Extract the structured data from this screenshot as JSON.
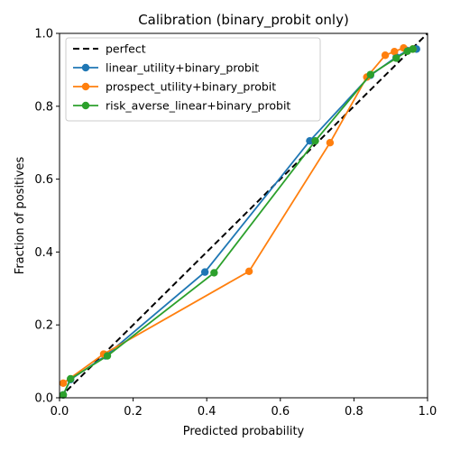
{
  "chart_data": {
    "type": "line",
    "title": "Calibration (binary_probit only)",
    "xlabel": "Predicted probability",
    "ylabel": "Fraction of positives",
    "xlim": [
      0,
      1
    ],
    "ylim": [
      0,
      1
    ],
    "xticks": [
      "0.0",
      "0.2",
      "0.4",
      "0.6",
      "0.8",
      "1.0"
    ],
    "yticks": [
      "0.0",
      "0.2",
      "0.4",
      "0.6",
      "0.8",
      "1.0"
    ],
    "grid": false,
    "legend_position": "top-left",
    "reference": {
      "name": "perfect",
      "color": "#000000",
      "style": "dashed",
      "x": [
        0,
        1
      ],
      "y": [
        0,
        1
      ]
    },
    "series": [
      {
        "name": "linear_utility+binary_probit",
        "color": "#1f77b4",
        "x": [
          0.01,
          0.03,
          0.125,
          0.395,
          0.68,
          0.845,
          0.915,
          0.945,
          0.97
        ],
        "y": [
          0.008,
          0.05,
          0.115,
          0.345,
          0.705,
          0.885,
          0.935,
          0.953,
          0.957
        ]
      },
      {
        "name": "prospect_utility+binary_probit",
        "color": "#ff7f0e",
        "x": [
          0.01,
          0.12,
          0.515,
          0.735,
          0.835,
          0.885,
          0.91,
          0.935,
          0.96
        ],
        "y": [
          0.04,
          0.12,
          0.347,
          0.7,
          0.88,
          0.94,
          0.95,
          0.96,
          0.957
        ]
      },
      {
        "name": "risk_averse_linear+binary_probit",
        "color": "#2ca02c",
        "x": [
          0.01,
          0.03,
          0.13,
          0.42,
          0.695,
          0.845,
          0.915,
          0.945,
          0.96
        ],
        "y": [
          0.008,
          0.052,
          0.115,
          0.343,
          0.705,
          0.887,
          0.932,
          0.951,
          0.957
        ]
      }
    ]
  }
}
